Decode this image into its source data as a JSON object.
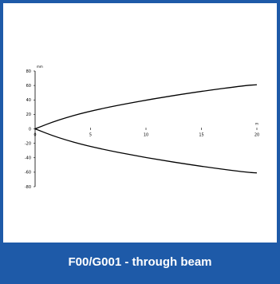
{
  "caption": "F00/G001 - through beam",
  "colors": {
    "frame": "#1e5aa8",
    "caption_text": "#ffffff",
    "line": "#000000"
  },
  "chart_data": {
    "type": "line",
    "x_unit": "m",
    "y_unit": "mm",
    "xlim": [
      0,
      20
    ],
    "ylim": [
      -80,
      80
    ],
    "x_ticks": [
      0,
      5,
      10,
      15,
      20
    ],
    "y_ticks": [
      80,
      60,
      40,
      20,
      0,
      -20,
      -40,
      -60,
      -80
    ],
    "grid": false,
    "series": [
      {
        "x": [
          0,
          2,
          5,
          10,
          15,
          19,
          20
        ],
        "y": [
          0,
          12,
          25,
          40,
          52,
          60,
          61
        ]
      },
      {
        "x": [
          0,
          2,
          5,
          10,
          15,
          19,
          20
        ],
        "y": [
          0,
          -12,
          -25,
          -40,
          -52,
          -60,
          -61
        ]
      }
    ]
  }
}
